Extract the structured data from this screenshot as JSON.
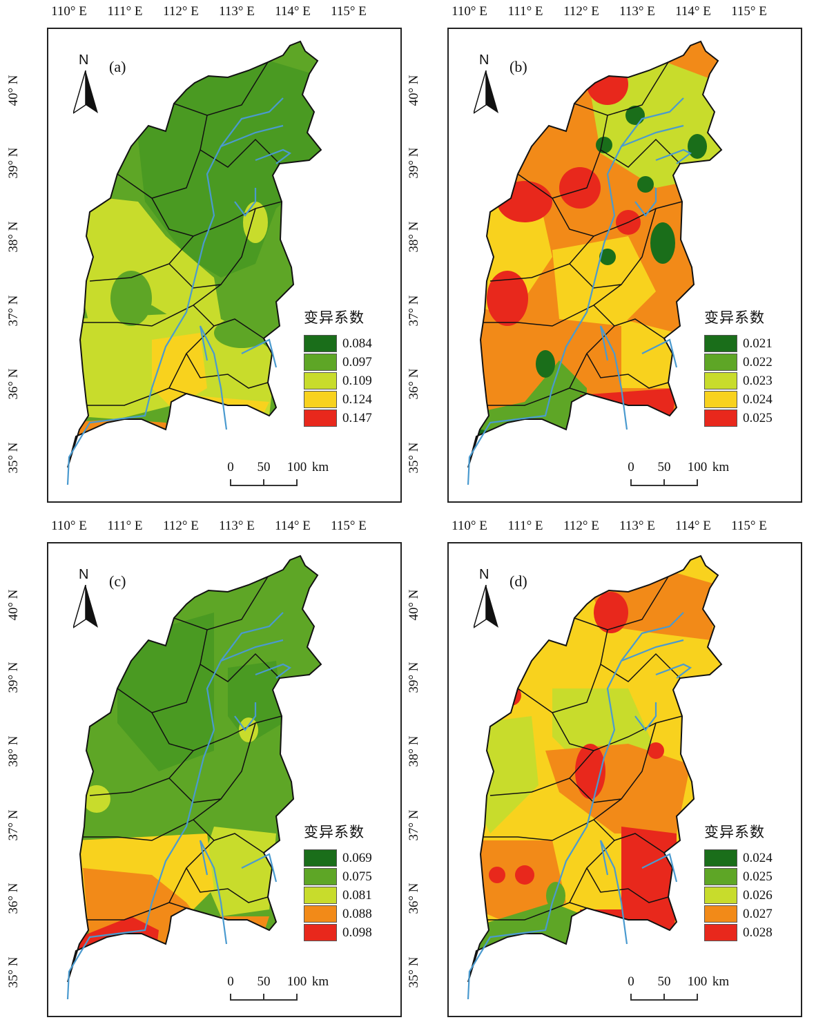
{
  "lon_labels": [
    "110° E",
    "111° E",
    "112° E",
    "113° E",
    "114° E",
    "115° E"
  ],
  "lat_labels": [
    "40° N",
    "39° N",
    "38° N",
    "37° N",
    "36° N",
    "35° N"
  ],
  "north_letter": "N",
  "legend_title": "变异系数",
  "scale": {
    "zero": "0",
    "mid": "50",
    "end": "100",
    "unit": "km"
  },
  "colors": {
    "c1": "#1a6e1a",
    "c2": "#5ea626",
    "c3": "#c8dc2c",
    "c4": "#f8d21e",
    "c5": "#f28a18",
    "c6": "#e8281c",
    "river": "#4a9acf",
    "boundary": "#111111"
  },
  "panels": [
    {
      "id": "a",
      "label": "(a)",
      "legend": [
        "0.084",
        "0.097",
        "0.109",
        "0.124",
        "0.147"
      ]
    },
    {
      "id": "b",
      "label": "(b)",
      "legend": [
        "0.021",
        "0.022",
        "0.023",
        "0.024",
        "0.025"
      ]
    },
    {
      "id": "c",
      "label": "(c)",
      "legend": [
        "0.069",
        "0.075",
        "0.081",
        "0.088",
        "0.098"
      ]
    },
    {
      "id": "d",
      "label": "(d)",
      "legend": [
        "0.024",
        "0.025",
        "0.026",
        "0.027",
        "0.028"
      ]
    }
  ]
}
